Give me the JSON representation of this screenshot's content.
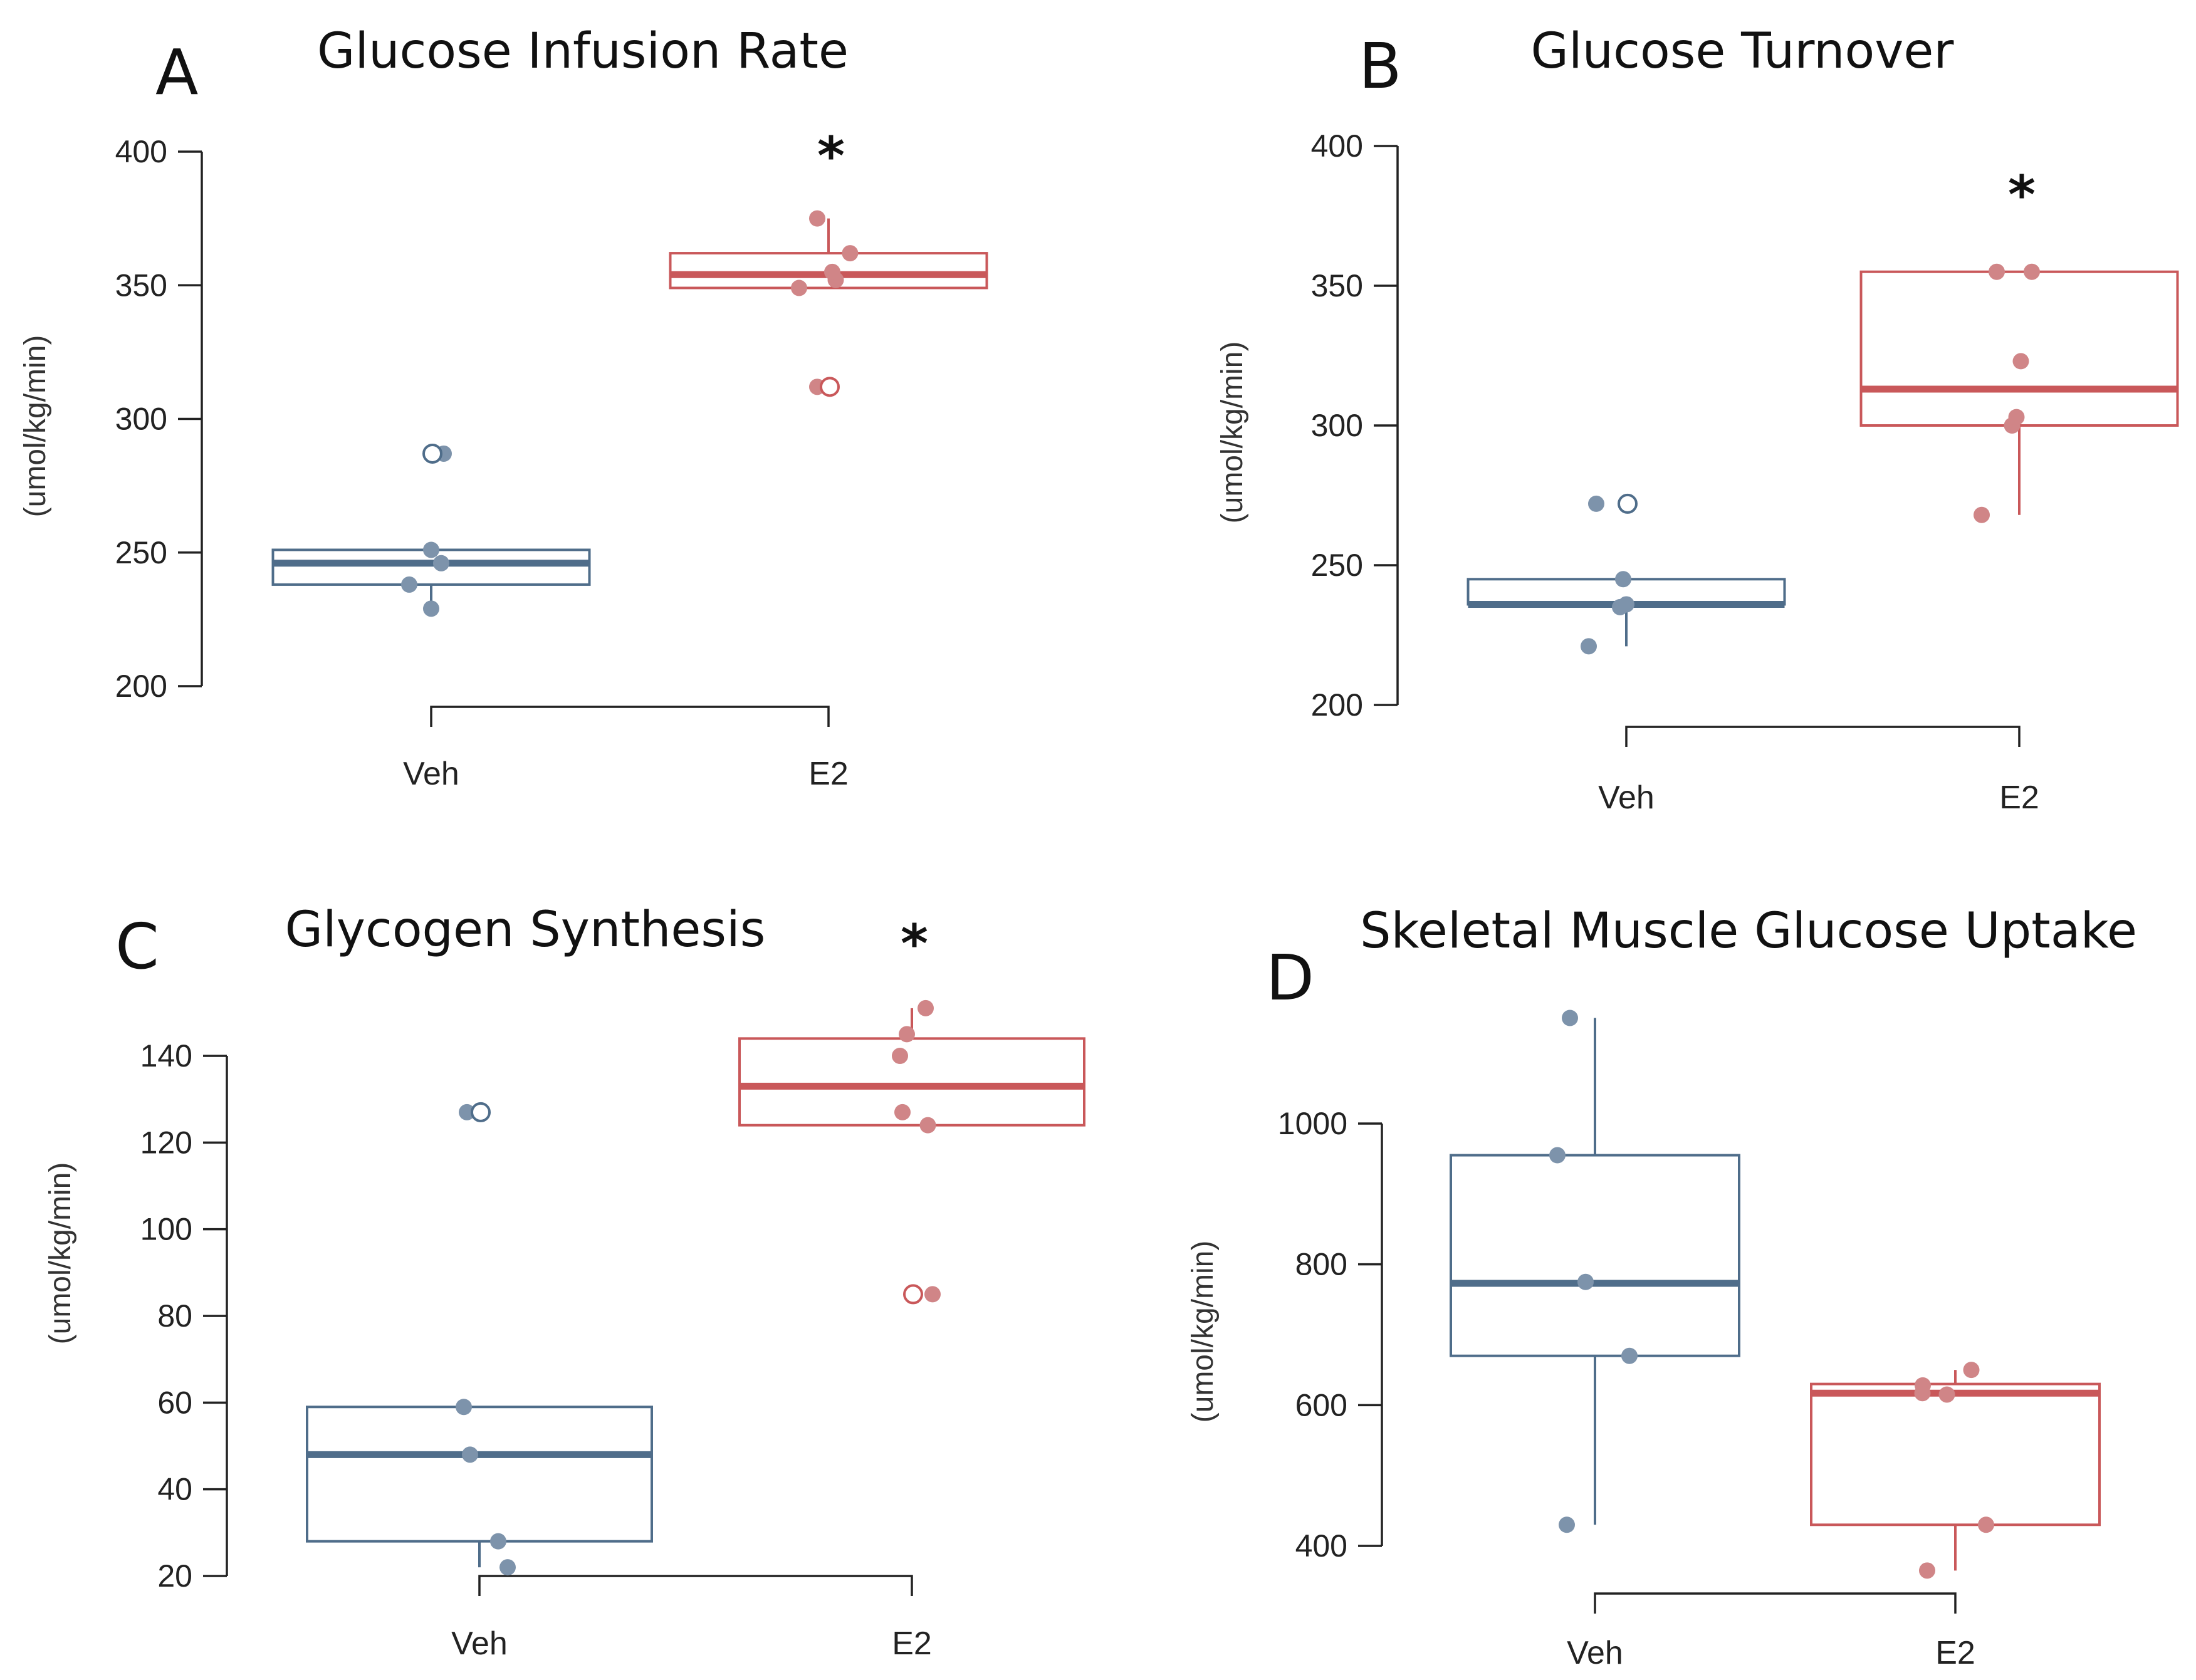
{
  "colors": {
    "veh": "#4f6d8a",
    "veh_point": "#7d93ab",
    "e2": "#c9585a",
    "e2_point": "#d08587"
  },
  "chart_data": [
    {
      "panel": "A",
      "title": "Glucose Infusion Rate",
      "type": "box",
      "ylabel": "(umol/kg/min)",
      "ylim": [
        200,
        400
      ],
      "yticks": [
        200,
        250,
        300,
        350,
        400
      ],
      "categories": [
        "Veh",
        "E2"
      ],
      "significance": {
        "category": "E2",
        "mark": "*"
      },
      "series": [
        {
          "group": "Veh",
          "box": {
            "q1": 238,
            "median": 246,
            "q3": 251,
            "whisker_low": 229,
            "whisker_high": 251
          },
          "points": [
            229,
            238,
            246,
            251,
            287
          ],
          "outliers": [
            287
          ]
        },
        {
          "group": "E2",
          "box": {
            "q1": 349,
            "median": 354,
            "q3": 362,
            "whisker_low": 349,
            "whisker_high": 375
          },
          "points": [
            312,
            349,
            352,
            355,
            362,
            375
          ],
          "outliers": [
            312
          ]
        }
      ]
    },
    {
      "panel": "B",
      "title": "Glucose Turnover",
      "type": "box",
      "ylabel": "(umol/kg/min)",
      "ylim": [
        200,
        400
      ],
      "yticks": [
        200,
        250,
        300,
        350,
        400
      ],
      "categories": [
        "Veh",
        "E2"
      ],
      "significance": {
        "category": "E2",
        "mark": "*"
      },
      "series": [
        {
          "group": "Veh",
          "box": {
            "q1": 236,
            "median": 236,
            "q3": 245,
            "whisker_low": 221,
            "whisker_high": 245
          },
          "points": [
            221,
            235,
            236,
            245,
            272
          ],
          "outliers": [
            272
          ]
        },
        {
          "group": "E2",
          "box": {
            "q1": 300,
            "median": 313,
            "q3": 355,
            "whisker_low": 268,
            "whisker_high": 355
          },
          "points": [
            268,
            300,
            303,
            323,
            355,
            355
          ],
          "outliers": []
        }
      ]
    },
    {
      "panel": "C",
      "title": "Glycogen Synthesis",
      "type": "box",
      "ylabel": "(umol/kg/min)",
      "ylim": [
        20,
        140
      ],
      "yticks": [
        20,
        40,
        60,
        80,
        100,
        120,
        140
      ],
      "categories": [
        "Veh",
        "E2"
      ],
      "significance": {
        "category": "E2",
        "mark": "*"
      },
      "series": [
        {
          "group": "Veh",
          "box": {
            "q1": 28,
            "median": 48,
            "q3": 59,
            "whisker_low": 22,
            "whisker_high": 59
          },
          "points": [
            22,
            28,
            48,
            59,
            127
          ],
          "outliers": [
            127
          ]
        },
        {
          "group": "E2",
          "box": {
            "q1": 124,
            "median": 133,
            "q3": 144,
            "whisker_low": 124,
            "whisker_high": 151
          },
          "points": [
            85,
            124,
            127,
            140,
            145,
            151
          ],
          "outliers": [
            85
          ]
        }
      ]
    },
    {
      "panel": "D",
      "title": "Skeletal Muscle Glucose Uptake",
      "type": "box",
      "ylabel": "(umol/kg/min)",
      "ylim": [
        400,
        1000
      ],
      "yticks": [
        400,
        600,
        800,
        1000
      ],
      "categories": [
        "Veh",
        "E2"
      ],
      "series": [
        {
          "group": "Veh",
          "box": {
            "q1": 670,
            "median": 773,
            "q3": 955,
            "whisker_low": 430,
            "whisker_high": 1150
          },
          "points": [
            430,
            670,
            775,
            955,
            1150
          ],
          "outliers": []
        },
        {
          "group": "E2",
          "box": {
            "q1": 430,
            "median": 617,
            "q3": 630,
            "whisker_low": 365,
            "whisker_high": 650
          },
          "points": [
            365,
            430,
            615,
            617,
            628,
            650
          ],
          "outliers": []
        }
      ]
    }
  ]
}
